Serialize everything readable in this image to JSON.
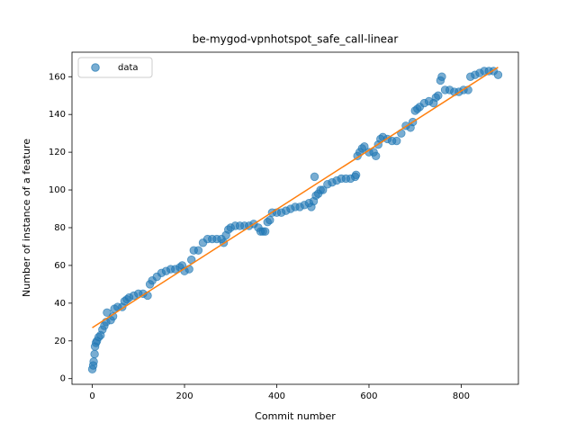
{
  "chart_data": {
    "type": "scatter",
    "title": "be-mygod-vpnhotspot_safe_call-linear",
    "xlabel": "Commit number",
    "ylabel": "Number of instance of a feature",
    "xlim": [
      -44,
      924
    ],
    "ylim": [
      -3,
      173
    ],
    "xticks": [
      0,
      200,
      400,
      600,
      800
    ],
    "yticks": [
      0,
      20,
      40,
      60,
      80,
      100,
      120,
      140,
      160
    ],
    "legend": "upper left",
    "series": [
      {
        "name": "data",
        "color": "#1f77b4",
        "x": [
          0,
          2,
          3,
          5,
          6,
          8,
          10,
          14,
          18,
          22,
          26,
          30,
          32,
          40,
          45,
          48,
          55,
          65,
          70,
          75,
          80,
          90,
          100,
          110,
          120,
          125,
          130,
          140,
          150,
          160,
          170,
          180,
          190,
          195,
          200,
          210,
          215,
          220,
          230,
          240,
          250,
          260,
          270,
          280,
          285,
          290,
          295,
          300,
          310,
          320,
          330,
          340,
          350,
          360,
          365,
          370,
          375,
          380,
          385,
          390,
          400,
          410,
          420,
          430,
          440,
          450,
          460,
          470,
          475,
          480,
          482,
          485,
          490,
          495,
          500,
          510,
          520,
          530,
          540,
          550,
          560,
          570,
          572,
          575,
          580,
          585,
          590,
          600,
          610,
          615,
          620,
          625,
          630,
          640,
          650,
          660,
          670,
          680,
          690,
          695,
          700,
          705,
          710,
          720,
          730,
          740,
          745,
          750,
          755,
          758,
          765,
          775,
          785,
          795,
          805,
          815,
          820,
          830,
          840,
          850,
          860,
          870,
          880
        ],
        "values": [
          5,
          7,
          9,
          13,
          17,
          19,
          20,
          22,
          23,
          26,
          28,
          30,
          35,
          31,
          33,
          37,
          38,
          38,
          41,
          42,
          43,
          44,
          45,
          45,
          44,
          50,
          52,
          54,
          56,
          57,
          58,
          58,
          59,
          60,
          57,
          58,
          63,
          68,
          68,
          72,
          74,
          74,
          74,
          74,
          72,
          76,
          79,
          80,
          81,
          81,
          81,
          81,
          82,
          80,
          78,
          78,
          78,
          83,
          84,
          88,
          88,
          88,
          89,
          90,
          91,
          91,
          92,
          93,
          91,
          94,
          107,
          97,
          98,
          100,
          100,
          103,
          104,
          105,
          106,
          106,
          106,
          107,
          108,
          118,
          120,
          122,
          123,
          120,
          120,
          118,
          124,
          127,
          128,
          127,
          126,
          126,
          130,
          134,
          133,
          136,
          142,
          143,
          144,
          146,
          147,
          146,
          149,
          150,
          158,
          160,
          153,
          153,
          152,
          152,
          153,
          153,
          160,
          161,
          162,
          163,
          163,
          163,
          161
        ]
      }
    ],
    "fit": {
      "x": [
        0,
        880
      ],
      "values": [
        27,
        165
      ],
      "color": "#ff7f0e"
    }
  }
}
